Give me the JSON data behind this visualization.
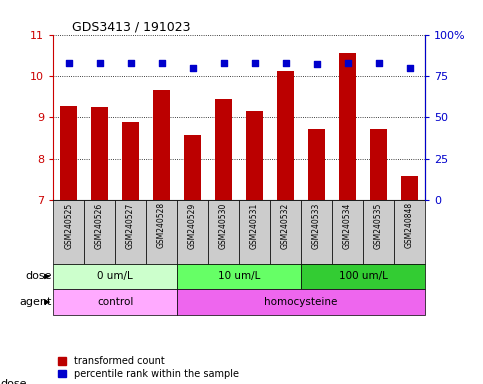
{
  "title": "GDS3413 / 191023",
  "samples": [
    "GSM240525",
    "GSM240526",
    "GSM240527",
    "GSM240528",
    "GSM240529",
    "GSM240530",
    "GSM240531",
    "GSM240532",
    "GSM240533",
    "GSM240534",
    "GSM240535",
    "GSM240848"
  ],
  "bar_values": [
    9.28,
    9.25,
    8.88,
    9.67,
    8.58,
    9.45,
    9.15,
    10.12,
    8.72,
    10.55,
    8.72,
    7.58
  ],
  "dot_values": [
    83,
    83,
    83,
    83,
    80,
    83,
    83,
    83,
    82,
    83,
    83,
    80
  ],
  "ylim_left": [
    7,
    11
  ],
  "ylim_right": [
    0,
    100
  ],
  "yticks_left": [
    7,
    8,
    9,
    10,
    11
  ],
  "ytick_labels_left": [
    "7",
    "8",
    "9",
    "10",
    "11"
  ],
  "yticks_right": [
    0,
    25,
    50,
    75,
    100
  ],
  "ytick_labels_right": [
    "0",
    "25",
    "50",
    "75",
    "100%"
  ],
  "bar_color": "#bb0000",
  "dot_color": "#0000cc",
  "grid_color": "black",
  "dose_groups": [
    {
      "label": "0 um/L",
      "start": 0,
      "end": 4,
      "color": "#ccffcc"
    },
    {
      "label": "10 um/L",
      "start": 4,
      "end": 8,
      "color": "#66ff66"
    },
    {
      "label": "100 um/L",
      "start": 8,
      "end": 12,
      "color": "#33cc33"
    }
  ],
  "agent_groups": [
    {
      "label": "control",
      "start": 0,
      "end": 4,
      "color": "#ffaaff"
    },
    {
      "label": "homocysteine",
      "start": 4,
      "end": 12,
      "color": "#ee66ee"
    }
  ],
  "dose_label": "dose",
  "agent_label": "agent",
  "legend_bar_label": "transformed count",
  "legend_dot_label": "percentile rank within the sample",
  "tick_color_left": "#cc0000",
  "tick_color_right": "#0000cc",
  "sample_bg_color": "#cccccc",
  "plot_bg_color": "#ffffff"
}
